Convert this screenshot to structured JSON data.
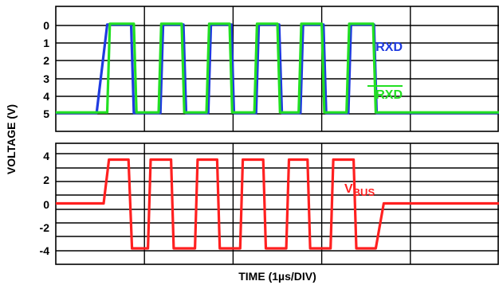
{
  "chart_data": {
    "type": "line",
    "xlabel": "TIME (1µs/DIV)",
    "ylabel": "VOLTAGE (V)",
    "x_units": "µs",
    "x_range": [
      0,
      5
    ],
    "panels": [
      {
        "ylim": [
          -0.8,
          5.6
        ],
        "yticks": [
          0,
          1,
          2,
          3,
          4,
          5
        ],
        "series": [
          {
            "name": "RXD",
            "color": "#1f3be0",
            "label_color": "#1f3be0",
            "overline": false,
            "levels": {
              "high": 4.95,
              "low": -0.05
            },
            "points": [
              [
                0,
                4.95
              ],
              [
                0.46,
                4.95
              ],
              [
                0.58,
                -0.05
              ],
              [
                0.85,
                -0.05
              ],
              [
                0.88,
                4.95
              ],
              [
                1.18,
                4.95
              ],
              [
                1.21,
                -0.05
              ],
              [
                1.44,
                -0.05
              ],
              [
                1.47,
                4.95
              ],
              [
                1.72,
                4.95
              ],
              [
                1.75,
                -0.05
              ],
              [
                1.98,
                -0.05
              ],
              [
                2.01,
                4.95
              ],
              [
                2.26,
                4.95
              ],
              [
                2.29,
                -0.05
              ],
              [
                2.52,
                -0.05
              ],
              [
                2.55,
                4.95
              ],
              [
                2.76,
                4.95
              ],
              [
                2.79,
                -0.05
              ],
              [
                3.02,
                -0.05
              ],
              [
                3.05,
                4.95
              ],
              [
                3.3,
                4.95
              ],
              [
                3.33,
                -0.05
              ],
              [
                3.59,
                -0.05
              ],
              [
                3.62,
                4.95
              ],
              [
                5,
                4.95
              ]
            ]
          },
          {
            "name": "RXD",
            "color": "#22e022",
            "label_color": "#22e022",
            "overline": true,
            "levels": {
              "high": 4.92,
              "low": -0.1
            },
            "points": [
              [
                0,
                4.92
              ],
              [
                0.58,
                4.92
              ],
              [
                0.61,
                -0.1
              ],
              [
                0.88,
                -0.1
              ],
              [
                0.91,
                4.92
              ],
              [
                1.16,
                4.92
              ],
              [
                1.19,
                -0.1
              ],
              [
                1.42,
                -0.1
              ],
              [
                1.45,
                4.92
              ],
              [
                1.7,
                4.92
              ],
              [
                1.73,
                -0.1
              ],
              [
                1.96,
                -0.1
              ],
              [
                1.99,
                4.92
              ],
              [
                2.24,
                4.92
              ],
              [
                2.27,
                -0.1
              ],
              [
                2.5,
                -0.1
              ],
              [
                2.53,
                4.92
              ],
              [
                2.74,
                4.92
              ],
              [
                2.77,
                -0.1
              ],
              [
                3,
                -0.1
              ],
              [
                3.03,
                4.92
              ],
              [
                3.28,
                4.92
              ],
              [
                3.31,
                -0.1
              ],
              [
                3.58,
                -0.1
              ],
              [
                3.61,
                4.92
              ],
              [
                5,
                4.92
              ]
            ]
          }
        ]
      },
      {
        "ylim": [
          -5,
          5
        ],
        "yticks": [
          -4,
          -2,
          0,
          2,
          4
        ],
        "series": [
          {
            "name": "VBUS",
            "name_main": "V",
            "name_sub": "BUS",
            "color": "#ff2020",
            "label_color": "#ff2020",
            "overline": false,
            "levels": {
              "high": 3.7,
              "low": -3.8,
              "idle": 0.0
            },
            "points": [
              [
                0,
                0
              ],
              [
                0.54,
                0
              ],
              [
                0.6,
                3.7
              ],
              [
                0.82,
                3.7
              ],
              [
                0.86,
                -3.8
              ],
              [
                1.04,
                -3.8
              ],
              [
                1.07,
                3.7
              ],
              [
                1.3,
                3.7
              ],
              [
                1.33,
                -3.8
              ],
              [
                1.57,
                -3.8
              ],
              [
                1.6,
                3.7
              ],
              [
                1.82,
                3.7
              ],
              [
                1.85,
                -3.8
              ],
              [
                2.08,
                -3.8
              ],
              [
                2.11,
                3.7
              ],
              [
                2.34,
                3.7
              ],
              [
                2.37,
                -3.8
              ],
              [
                2.6,
                -3.8
              ],
              [
                2.63,
                3.7
              ],
              [
                2.84,
                3.7
              ],
              [
                2.87,
                -3.8
              ],
              [
                3.1,
                -3.8
              ],
              [
                3.13,
                3.7
              ],
              [
                3.36,
                3.7
              ],
              [
                3.39,
                -3.8
              ],
              [
                3.61,
                -3.8
              ],
              [
                3.7,
                0
              ],
              [
                5,
                0
              ]
            ]
          }
        ]
      }
    ]
  }
}
